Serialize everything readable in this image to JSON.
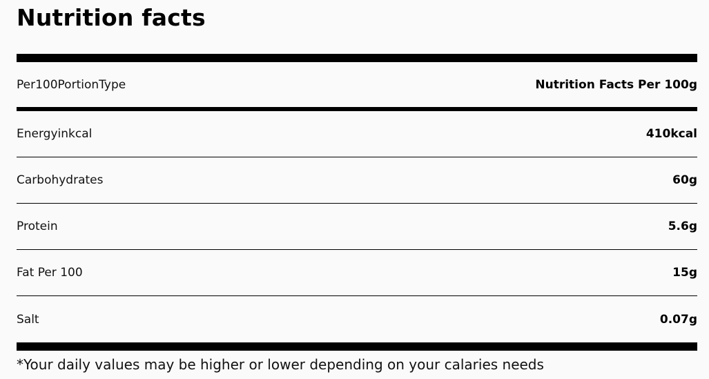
{
  "title": "Nutrition facts",
  "header": {
    "label": "Per100PortionType",
    "value": "Nutrition Facts Per 100g"
  },
  "rows": [
    {
      "label": "Energyinkcal",
      "value": "410kcal"
    },
    {
      "label": "Carbohydrates",
      "value": "60g"
    },
    {
      "label": "Protein",
      "value": "5.6g"
    },
    {
      "label": "Fat Per 100",
      "value": "15g"
    },
    {
      "label": "Salt",
      "value": "0.07g"
    }
  ],
  "footnote": "*Your daily values may be higher or lower depending on your calaries needs"
}
